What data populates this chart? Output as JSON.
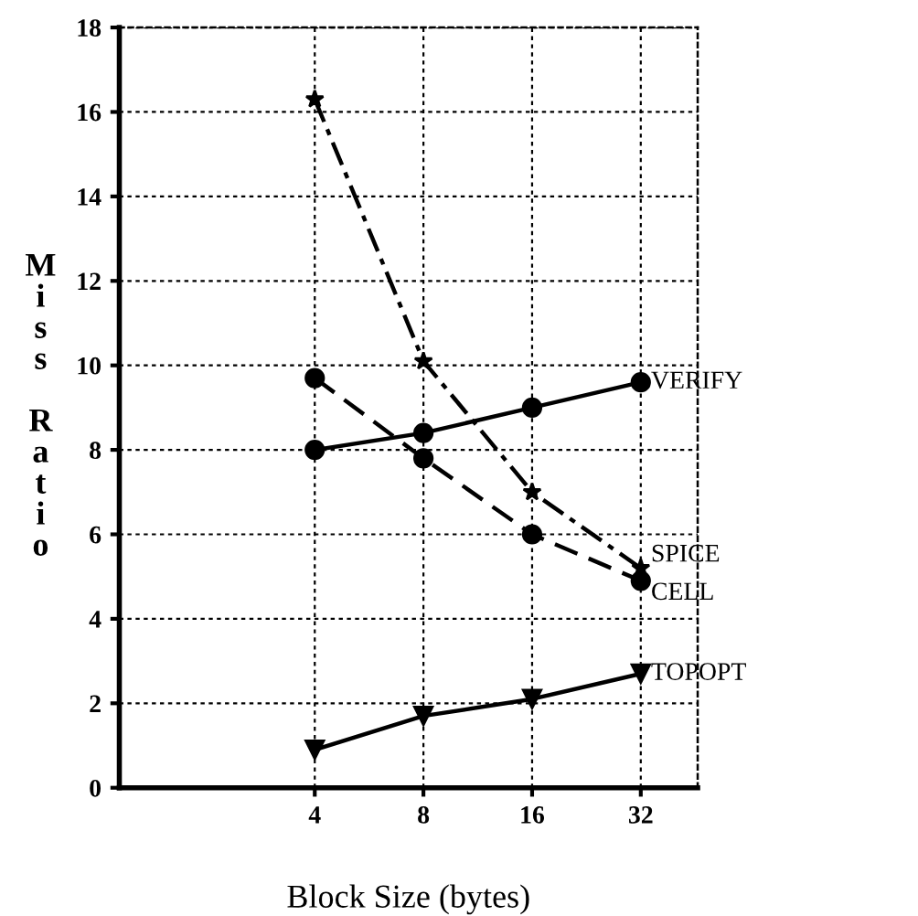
{
  "chart_data": {
    "type": "line",
    "xlabel": "Block Size (bytes)",
    "ylabel": "Miss Ratio",
    "x": [
      4,
      8,
      16,
      32
    ],
    "log": "x",
    "xlim": [
      1.15,
      46
    ],
    "xticks": [
      4,
      8,
      16,
      32
    ],
    "ylim": [
      0,
      18
    ],
    "yticks": [
      0,
      2,
      4,
      6,
      8,
      10,
      12,
      14,
      16,
      18
    ],
    "grid": true,
    "series": [
      {
        "name": "VERIFY",
        "color": "#000000",
        "values": [
          8.0,
          8.4,
          9.0,
          9.6
        ],
        "marker": "circle",
        "line_style": "solid"
      },
      {
        "name": "SPICE",
        "color": "#000000",
        "values": [
          16.3,
          10.1,
          7.0,
          5.2
        ],
        "marker": "star",
        "line_style": "dashdot"
      },
      {
        "name": "CELL",
        "color": "#000000",
        "values": [
          9.7,
          7.8,
          6.0,
          4.9
        ],
        "marker": "circle",
        "line_style": "dashed"
      },
      {
        "name": "TOPOPT",
        "color": "#000000",
        "values": [
          0.9,
          1.7,
          2.1,
          2.7
        ],
        "marker": "triangle",
        "line_style": "solid"
      }
    ]
  }
}
